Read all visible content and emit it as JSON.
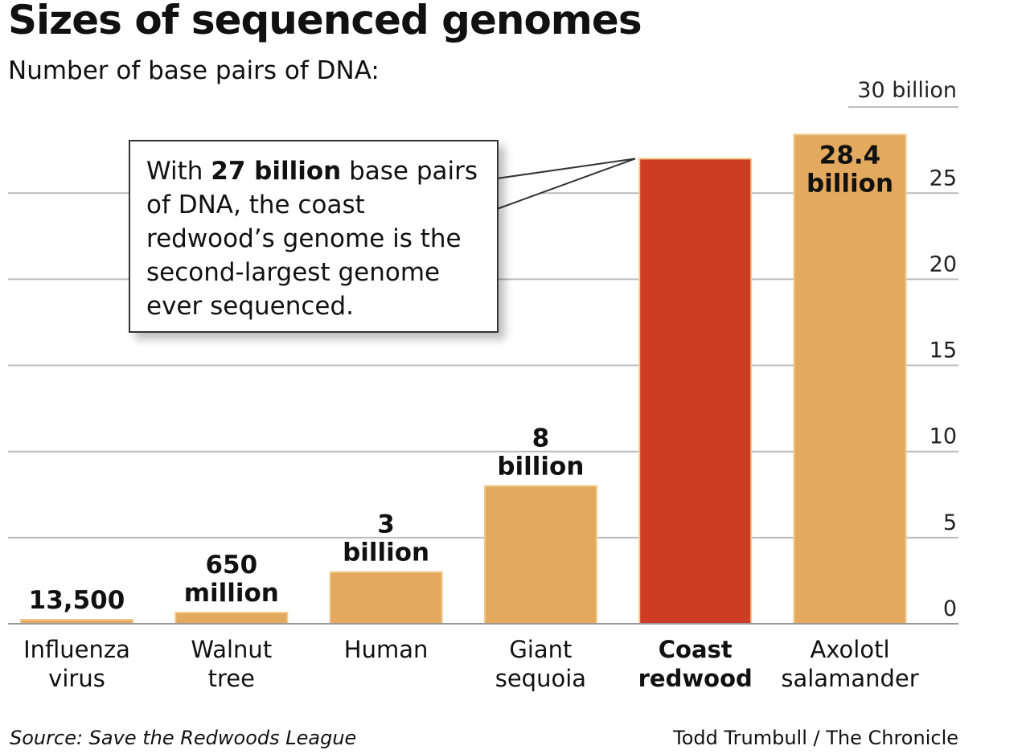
{
  "title": "Sizes of sequenced genomes",
  "subtitle": "Number of base pairs of DNA:",
  "source": "Source: Save the Redwoods League",
  "credit": "Todd Trumbull / The Chronicle",
  "callout": {
    "before": "With ",
    "bold": "27 billion",
    "after": " base pairs of DNA, the coast redwood’s genome is the second-largest genome ever sequenced."
  },
  "colors": {
    "bar": "#e3a95e",
    "highlight": "#cc3d23",
    "grid": "#bbbbbb"
  },
  "chart_data": {
    "type": "bar",
    "unit": "billion",
    "categories": [
      [
        "Influenza",
        "virus"
      ],
      [
        "Walnut",
        "tree"
      ],
      [
        "Human"
      ],
      [
        "Giant",
        "sequoia"
      ],
      [
        "Coast",
        "redwood"
      ],
      [
        "Axolotl",
        "salamander"
      ]
    ],
    "values": [
      1.35e-05,
      0.65,
      3,
      8,
      27,
      28.4
    ],
    "data_labels": [
      [
        "13,500"
      ],
      [
        "650",
        "million"
      ],
      [
        "3",
        "billion"
      ],
      [
        "8",
        "billion"
      ],
      [],
      [
        "28.4",
        "billion"
      ]
    ],
    "highlight_index": 4,
    "yticks": [
      0,
      5,
      10,
      15,
      20,
      25,
      30
    ],
    "ytick_labels": [
      "0",
      "5",
      "10",
      "15",
      "20",
      "25",
      "30 billion"
    ],
    "ylim": [
      0,
      30
    ],
    "grid": true
  }
}
